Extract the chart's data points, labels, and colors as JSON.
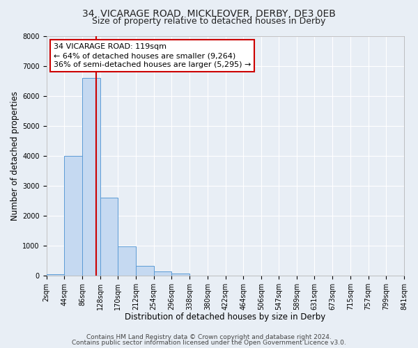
{
  "title": "34, VICARAGE ROAD, MICKLEOVER, DERBY, DE3 0EB",
  "subtitle": "Size of property relative to detached houses in Derby",
  "xlabel": "Distribution of detached houses by size in Derby",
  "ylabel": "Number of detached properties",
  "bin_labels": [
    "2sqm",
    "44sqm",
    "86sqm",
    "128sqm",
    "170sqm",
    "212sqm",
    "254sqm",
    "296sqm",
    "338sqm",
    "380sqm",
    "422sqm",
    "464sqm",
    "506sqm",
    "547sqm",
    "589sqm",
    "631sqm",
    "673sqm",
    "715sqm",
    "757sqm",
    "799sqm",
    "841sqm"
  ],
  "bar_values": [
    50,
    4000,
    6600,
    2600,
    980,
    330,
    140,
    70,
    0,
    0,
    0,
    0,
    0,
    0,
    0,
    0,
    0,
    0,
    0,
    0
  ],
  "bin_edges": [
    2,
    44,
    86,
    128,
    170,
    212,
    254,
    296,
    338,
    380,
    422,
    464,
    506,
    547,
    589,
    631,
    673,
    715,
    757,
    799,
    841
  ],
  "bar_color": "#c5d9f1",
  "bar_edge_color": "#5b9bd5",
  "property_size": 119,
  "vline_color": "#cc0000",
  "annotation_line1": "34 VICARAGE ROAD: 119sqm",
  "annotation_line2": "← 64% of detached houses are smaller (9,264)",
  "annotation_line3": "36% of semi-detached houses are larger (5,295) →",
  "annotation_box_edge": "#cc0000",
  "annotation_box_face": "#ffffff",
  "ylim": [
    0,
    8000
  ],
  "yticks": [
    0,
    1000,
    2000,
    3000,
    4000,
    5000,
    6000,
    7000,
    8000
  ],
  "footer_line1": "Contains HM Land Registry data © Crown copyright and database right 2024.",
  "footer_line2": "Contains public sector information licensed under the Open Government Licence v3.0.",
  "bg_color": "#e8eef5",
  "plot_bg_color": "#e8eef5",
  "title_fontsize": 10,
  "subtitle_fontsize": 9,
  "axis_label_fontsize": 8.5,
  "tick_fontsize": 7,
  "footer_fontsize": 6.5,
  "annotation_fontsize": 8
}
